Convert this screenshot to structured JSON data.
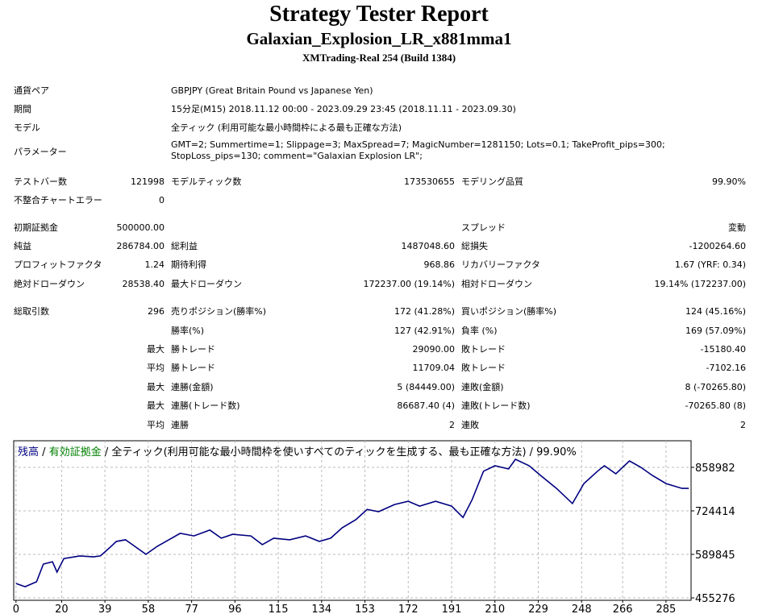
{
  "header": {
    "title": "Strategy Tester Report",
    "subtitle": "Galaxian_Explosion_LR_x881mma1",
    "server": "XMTrading-Real 254 (Build 1384)"
  },
  "table": {
    "rows": [
      [
        "通貨ペア",
        "GBPJPY (Great Britain Pound vs Japanese Yen)"
      ],
      [
        "期間",
        "15分足(M15) 2018.11.12 00:00 - 2023.09.29 23:45 (2018.11.11 - 2023.09.30)"
      ],
      [
        "モデル",
        "全ティック (利用可能な最小時間枠による最も正確な方法)"
      ],
      [
        "パラメーター",
        "GMT=2; Summertime=1; Slippage=3; MaxSpread=7; MagicNumber=1281150; Lots=0.1; TakeProfit_pips=300; StopLoss_pips=130; comment=\"Galaxian Explosion LR\";"
      ],
      [
        "テストバー数",
        "121998",
        "モデルティック数",
        "173530655",
        "モデリング品質",
        "99.90%"
      ],
      [
        "不整合チャートエラー",
        "0",
        null,
        null,
        null,
        null
      ],
      [
        "初期証拠金",
        "500000.00",
        null,
        null,
        "スプレッド",
        "変動"
      ],
      [
        "純益",
        "286784.00",
        "総利益",
        "1487048.60",
        "総損失",
        "-1200264.60"
      ],
      [
        "プロフィットファクタ",
        "1.24",
        "期待利得",
        "968.86",
        "リカバリーファクタ",
        "1.67 (YRF: 0.34)"
      ],
      [
        "絶対ドローダウン",
        "28538.40",
        "最大ドローダウン",
        "172237.00 (19.14%)",
        "相対ドローダウン",
        "19.14% (172237.00)"
      ],
      [
        "総取引数",
        "296",
        "売りポジション(勝率%)",
        "172 (41.28%)",
        "買いポジション(勝率%)",
        "124 (45.16%)"
      ],
      [
        null,
        null,
        "勝率(%)",
        "127 (42.91%)",
        "負率 (%)",
        "169 (57.09%)"
      ],
      [
        null,
        "最大",
        "勝トレード",
        "29090.00",
        "敗トレード",
        "-15180.40"
      ],
      [
        null,
        "平均",
        "勝トレード",
        "11709.04",
        "敗トレード",
        "-7102.16"
      ],
      [
        null,
        "最大",
        "連勝(金額)",
        "5 (84449.00)",
        "連敗(金額)",
        "8 (-70265.80)"
      ],
      [
        null,
        "最大",
        "連勝(トレード数)",
        "86687.40 (4)",
        "連敗(トレード数)",
        "-70265.80 (8)"
      ],
      [
        null,
        "平均",
        "連勝",
        "2",
        "連敗",
        "2"
      ]
    ]
  },
  "chart_data": {
    "type": "line",
    "legend": {
      "balance": "残高",
      "sep": "/",
      "equity": "有効証拠金",
      "rest": "/ 全ティック(利用可能な最小時間枠を使いすべてのティックを生成する、最も正確な方法) / 99.90%"
    },
    "legend_colors": {
      "balance": "#000080",
      "equity": "#008000"
    },
    "x": [
      0,
      4,
      9,
      12,
      16,
      18,
      21,
      28,
      34,
      37,
      41,
      44,
      48,
      51,
      57,
      62,
      67,
      72,
      78,
      85,
      90,
      95,
      103,
      108,
      113,
      120,
      127,
      133,
      138,
      143,
      149,
      154,
      159,
      166,
      172,
      177,
      184,
      191,
      196,
      200,
      205,
      210,
      216,
      219,
      225,
      230,
      237,
      244,
      249,
      255,
      258,
      263,
      269,
      274,
      279,
      285,
      292,
      295
    ],
    "series": [
      {
        "name": "残高",
        "color": "#000080",
        "values": [
          500000,
          490000,
          505000,
          560000,
          567000,
          535000,
          577000,
          585000,
          582000,
          585000,
          610000,
          630000,
          635000,
          620000,
          590000,
          615000,
          635000,
          655000,
          647000,
          665000,
          640000,
          652000,
          647000,
          620000,
          640000,
          635000,
          647000,
          630000,
          640000,
          672000,
          697000,
          729000,
          722000,
          744000,
          754000,
          739000,
          754000,
          739000,
          704000,
          759000,
          847000,
          864000,
          854000,
          884000,
          864000,
          834000,
          794000,
          747000,
          809000,
          847000,
          864000,
          839000,
          879000,
          859000,
          834000,
          809000,
          794000,
          794000
        ]
      }
    ],
    "xlim": [
      -1,
      296
    ],
    "ylim": [
      447800,
      941200
    ],
    "xticks": [
      0,
      20,
      39,
      58,
      77,
      96,
      115,
      134,
      153,
      172,
      191,
      210,
      229,
      248,
      266,
      285
    ],
    "yticks": [
      455276,
      589845,
      724414,
      858982
    ],
    "grid": true
  }
}
